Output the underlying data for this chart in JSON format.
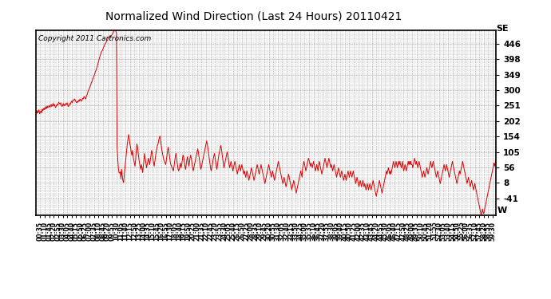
{
  "title": "Normalized Wind Direction (Last 24 Hours) 20110421",
  "copyright": "Copyright 2011 Cartronics.com",
  "line_color": "#dd0000",
  "bg_color": "#ffffff",
  "plot_bg_color": "#ffffff",
  "grid_color": "#999999",
  "yticks": [
    446,
    398,
    349,
    300,
    251,
    202,
    154,
    105,
    56,
    8,
    -41
  ],
  "ytick_labels": [
    "446",
    "398",
    "349",
    "300",
    "251",
    "202",
    "154",
    "105",
    "56",
    "8",
    "-41"
  ],
  "y_top_label": "SE",
  "y_bottom_label": "W",
  "ylim": [
    -95,
    490
  ],
  "xtick_minutes": [
    35,
    70,
    105,
    140,
    175,
    210,
    245,
    280,
    315,
    350,
    385,
    420,
    455,
    490,
    525,
    560,
    595,
    630,
    665,
    700,
    735,
    770,
    805,
    840,
    875,
    910,
    945,
    980,
    1015,
    1050,
    1085,
    1120,
    1155,
    1190,
    1225,
    1260,
    1295,
    1330,
    1365,
    1400
  ],
  "data": [
    230,
    225,
    235,
    228,
    232,
    238,
    225,
    230,
    235,
    228,
    240,
    235,
    242,
    238,
    245,
    240,
    248,
    242,
    250,
    245,
    248,
    252,
    246,
    250,
    255,
    248,
    252,
    258,
    250,
    255,
    248,
    245,
    250,
    255,
    252,
    258,
    262,
    258,
    255,
    260,
    252,
    248,
    252,
    258,
    250,
    255,
    252,
    258,
    255,
    260,
    252,
    248,
    252,
    258,
    255,
    262,
    265,
    260,
    268,
    270,
    268,
    272,
    265,
    262,
    260,
    265,
    262,
    268,
    265,
    272,
    268,
    265,
    268,
    274,
    272,
    278,
    280,
    275,
    272,
    280,
    285,
    292,
    298,
    302,
    308,
    312,
    318,
    325,
    328,
    335,
    340,
    345,
    350,
    358,
    362,
    368,
    375,
    382,
    390,
    398,
    405,
    412,
    418,
    422,
    425,
    430,
    435,
    440,
    445,
    448,
    452,
    455,
    458,
    462,
    465,
    468,
    472,
    468,
    472,
    475,
    478,
    482,
    486,
    488,
    490,
    486,
    480,
    120,
    85,
    55,
    40,
    38,
    42,
    20,
    50,
    30,
    15,
    8,
    25,
    50,
    70,
    90,
    110,
    130,
    145,
    160,
    150,
    130,
    120,
    105,
    95,
    110,
    90,
    80,
    70,
    60,
    80,
    110,
    130,
    120,
    100,
    85,
    70,
    60,
    50,
    65,
    55,
    40,
    60,
    80,
    100,
    85,
    70,
    55,
    65,
    75,
    85,
    75,
    65,
    80,
    95,
    110,
    100,
    85,
    70,
    60,
    75,
    90,
    105,
    115,
    125,
    130,
    140,
    150,
    155,
    140,
    125,
    110,
    100,
    90,
    80,
    75,
    70,
    65,
    80,
    95,
    110,
    120,
    105,
    90,
    75,
    65,
    60,
    55,
    50,
    45,
    60,
    75,
    90,
    100,
    85,
    70,
    55,
    45,
    50,
    60,
    70,
    55,
    65,
    80,
    95,
    90,
    75,
    60,
    50,
    65,
    80,
    90,
    75,
    60,
    70,
    85,
    95,
    85,
    70,
    55,
    45,
    55,
    65,
    75,
    85,
    95,
    105,
    115,
    105,
    90,
    75,
    60,
    50,
    60,
    70,
    80,
    90,
    100,
    110,
    120,
    130,
    140,
    130,
    115,
    100,
    85,
    70,
    55,
    45,
    55,
    65,
    80,
    90,
    100,
    90,
    75,
    60,
    50,
    65,
    80,
    95,
    105,
    115,
    125,
    115,
    100,
    85,
    70,
    55,
    65,
    75,
    85,
    95,
    105,
    95,
    80,
    65,
    55,
    65,
    75,
    65,
    55,
    45,
    55,
    65,
    75,
    65,
    55,
    45,
    35,
    45,
    55,
    65,
    55,
    45,
    55,
    65,
    55,
    45,
    35,
    45,
    35,
    25,
    35,
    45,
    35,
    25,
    15,
    25,
    35,
    45,
    55,
    45,
    35,
    25,
    15,
    25,
    35,
    45,
    55,
    65,
    55,
    45,
    35,
    45,
    55,
    65,
    55,
    45,
    35,
    25,
    15,
    5,
    15,
    25,
    35,
    45,
    55,
    65,
    55,
    45,
    35,
    25,
    35,
    45,
    35,
    25,
    15,
    25,
    35,
    45,
    55,
    65,
    75,
    65,
    55,
    45,
    35,
    25,
    15,
    5,
    15,
    25,
    15,
    5,
    -5,
    5,
    15,
    25,
    35,
    25,
    15,
    5,
    -5,
    -15,
    -5,
    5,
    15,
    5,
    -5,
    -15,
    -25,
    -15,
    -5,
    5,
    15,
    25,
    35,
    45,
    35,
    25,
    55,
    65,
    75,
    65,
    55,
    45,
    55,
    65,
    75,
    85,
    80,
    70,
    60,
    70,
    65,
    55,
    65,
    75,
    65,
    55,
    45,
    55,
    65,
    55,
    45,
    65,
    75,
    65,
    55,
    45,
    35,
    45,
    55,
    65,
    75,
    85,
    75,
    65,
    55,
    65,
    75,
    85,
    75,
    65,
    55,
    65,
    55,
    45,
    55,
    65,
    55,
    45,
    35,
    25,
    35,
    45,
    55,
    45,
    35,
    25,
    35,
    45,
    35,
    25,
    15,
    25,
    35,
    25,
    15,
    25,
    35,
    45,
    35,
    25,
    35,
    45,
    35,
    25,
    35,
    45,
    35,
    25,
    15,
    5,
    15,
    25,
    15,
    5,
    -5,
    5,
    15,
    5,
    -5,
    5,
    15,
    5,
    -5,
    5,
    -5,
    -15,
    -5,
    5,
    -5,
    -15,
    -5,
    5,
    -5,
    -15,
    -5,
    5,
    15,
    5,
    -5,
    -15,
    -25,
    -35,
    -25,
    -15,
    -5,
    5,
    15,
    5,
    -5,
    -15,
    -25,
    -15,
    -5,
    5,
    15,
    25,
    35,
    45,
    35,
    45,
    55,
    45,
    35,
    45,
    35,
    45,
    55,
    65,
    75,
    65,
    55,
    65,
    75,
    65,
    55,
    65,
    75,
    65,
    75,
    65,
    55,
    65,
    75,
    55,
    45,
    55,
    65,
    55,
    45,
    55,
    65,
    75,
    65,
    75,
    65,
    75,
    65,
    65,
    55,
    65,
    75,
    85,
    75,
    65,
    75,
    65,
    55,
    65,
    75,
    65,
    55,
    45,
    35,
    25,
    35,
    45,
    35,
    25,
    35,
    45,
    55,
    45,
    35,
    45,
    55,
    65,
    75,
    65,
    55,
    65,
    75,
    65,
    55,
    45,
    35,
    25,
    35,
    45,
    35,
    25,
    15,
    5,
    15,
    25,
    35,
    45,
    55,
    65,
    55,
    45,
    55,
    65,
    55,
    45,
    35,
    25,
    35,
    45,
    55,
    65,
    75,
    65,
    55,
    45,
    35,
    25,
    15,
    5,
    15,
    25,
    35,
    45,
    35,
    45,
    55,
    65,
    75,
    65,
    55,
    45,
    35,
    25,
    15,
    5,
    15,
    25,
    15,
    5,
    -5,
    5,
    15,
    5,
    -5,
    -15,
    -5,
    5,
    -5,
    -15,
    -25,
    -35,
    -45,
    -55,
    -65,
    -75,
    -85,
    -95,
    -85,
    -75,
    -85,
    -90,
    -80,
    -70,
    -60,
    -50,
    -40,
    -30,
    -20,
    -10,
    0,
    10,
    20,
    30,
    40,
    50,
    60,
    70,
    60,
    70,
    80
  ]
}
